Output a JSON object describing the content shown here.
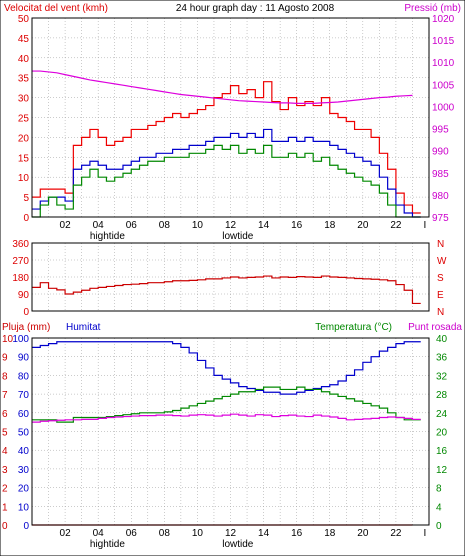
{
  "chart_data": [
    {
      "type": "line",
      "panel": "wind-pressure",
      "title": "24 hour graph day : 11 Agosto 2008",
      "ylabel_left": "Velocitat del vent (kmh)",
      "ylabel_right": "Pressió (mb)",
      "ylim_left": [
        0,
        50
      ],
      "ylim_right": [
        975,
        1020
      ],
      "yticks_left": [
        0,
        5,
        10,
        15,
        20,
        25,
        30,
        35,
        40,
        45,
        50
      ],
      "yticks_right": [
        975,
        980,
        985,
        990,
        995,
        1000,
        1005,
        1010,
        1015,
        1020
      ],
      "xlim": [
        0,
        24
      ],
      "xticks": [
        "02",
        "04",
        "06",
        "08",
        "10",
        "12",
        "14",
        "16",
        "18",
        "20",
        "22"
      ],
      "x_end_tick": "I",
      "tide_labels": [
        {
          "x": 3.5,
          "text": "hightide"
        },
        {
          "x": 11.5,
          "text": "lowtide"
        }
      ],
      "grid": true,
      "x": [
        0,
        0.5,
        1,
        1.5,
        2,
        2.5,
        3,
        3.5,
        4,
        4.5,
        5,
        5.5,
        6,
        6.5,
        7,
        7.5,
        8,
        8.5,
        9,
        9.5,
        10,
        10.5,
        11,
        11.5,
        12,
        12.5,
        13,
        13.5,
        14,
        14.5,
        15,
        15.5,
        16,
        16.5,
        17,
        17.5,
        18,
        18.5,
        19,
        19.5,
        20,
        20.5,
        21,
        21.5,
        22,
        22.5,
        23
      ],
      "series": [
        {
          "name": "Gust",
          "axis": "left",
          "color": "#ee0000",
          "values": [
            5,
            7,
            7,
            7,
            6,
            18,
            20,
            22,
            20,
            18,
            19,
            20,
            22,
            22,
            23,
            24,
            25,
            26,
            25,
            26,
            27,
            28,
            30,
            31,
            33,
            31,
            32,
            30,
            34,
            29,
            27,
            30,
            28,
            29,
            28,
            30,
            26,
            25,
            24,
            22,
            22,
            20,
            16,
            12,
            6,
            3,
            1
          ]
        },
        {
          "name": "Average",
          "axis": "left",
          "color": "#0000cc",
          "values": [
            2,
            4,
            5,
            5,
            4,
            12,
            13,
            14,
            13,
            12,
            12,
            13,
            14,
            15,
            15,
            16,
            16,
            17,
            17,
            18,
            18,
            19,
            20,
            20,
            21,
            20,
            21,
            20,
            22,
            19,
            19,
            20,
            19,
            20,
            19,
            19,
            18,
            17,
            16,
            15,
            14,
            13,
            10,
            7,
            3,
            1,
            0
          ]
        },
        {
          "name": "Speed",
          "axis": "left",
          "color": "#008800",
          "values": [
            0,
            3,
            5,
            3,
            2,
            8,
            10,
            12,
            10,
            9,
            10,
            11,
            12,
            13,
            14,
            14,
            15,
            15,
            15,
            16,
            16,
            17,
            18,
            17,
            18,
            16,
            17,
            16,
            18,
            15,
            15,
            16,
            15,
            16,
            14,
            15,
            13,
            12,
            11,
            10,
            9,
            8,
            6,
            3,
            0,
            0,
            0
          ]
        },
        {
          "name": "Pressure",
          "axis": "right",
          "color": "#dd00dd",
          "values": [
            1008,
            1008,
            1007.8,
            1007.6,
            1007.2,
            1006.8,
            1006.4,
            1006,
            1005.7,
            1005.4,
            1005.1,
            1004.8,
            1004.5,
            1004.2,
            1003.9,
            1003.6,
            1003.3,
            1003,
            1002.7,
            1002.5,
            1002.3,
            1002.1,
            1001.9,
            1001.7,
            1001.5,
            1001.3,
            1001.2,
            1001.1,
            1001,
            1000.9,
            1000.8,
            1000.8,
            1000.7,
            1000.7,
            1000.7,
            1000.8,
            1000.9,
            1001,
            1001.2,
            1001.4,
            1001.6,
            1001.8,
            1002,
            1002.1,
            1002.3,
            1002.4,
            1002.5
          ]
        }
      ]
    },
    {
      "type": "line",
      "panel": "wind-direction",
      "ylim": [
        0,
        360
      ],
      "yticks": [
        0,
        90,
        180,
        270,
        360
      ],
      "yticks_right": [
        "N",
        "W",
        "S",
        "E",
        "N"
      ],
      "xlim": [
        0,
        24
      ],
      "grid": true,
      "x": [
        0,
        0.5,
        1,
        1.5,
        2,
        2.5,
        3,
        3.5,
        4,
        4.5,
        5,
        5.5,
        6,
        6.5,
        7,
        7.5,
        8,
        8.5,
        9,
        9.5,
        10,
        10.5,
        11,
        11.5,
        12,
        12.5,
        13,
        13.5,
        14,
        14.5,
        15,
        15.5,
        16,
        16.5,
        17,
        17.5,
        18,
        18.5,
        19,
        19.5,
        20,
        20.5,
        21,
        21.5,
        22,
        22.5,
        23
      ],
      "series": [
        {
          "name": "Direction",
          "color": "#cc0000",
          "values": [
            125,
            150,
            120,
            112,
            90,
            100,
            110,
            120,
            125,
            130,
            135,
            140,
            142,
            145,
            150,
            150,
            155,
            160,
            160,
            162,
            165,
            170,
            170,
            175,
            180,
            175,
            178,
            180,
            185,
            175,
            180,
            178,
            182,
            180,
            178,
            185,
            180,
            178,
            175,
            172,
            170,
            168,
            165,
            160,
            140,
            110,
            40
          ]
        }
      ]
    },
    {
      "type": "line",
      "panel": "rain-humidity-temp",
      "ylabel_left": "Pluja (mm)",
      "ylabel_left2": "Humitat",
      "ylabel_right": "Temperatura (°C)",
      "ylabel_right2": "Punt rosada",
      "ylim_left": [
        0,
        100
      ],
      "ylim_right": [
        0,
        40
      ],
      "yticks_left_rain": [
        0,
        1,
        2,
        3,
        4,
        5,
        6,
        7,
        8,
        9,
        10
      ],
      "yticks_left_hum": [
        0,
        10,
        20,
        30,
        40,
        50,
        60,
        70,
        80,
        90,
        100
      ],
      "yticks_right": [
        0,
        4,
        8,
        12,
        16,
        20,
        24,
        28,
        32,
        36,
        40
      ],
      "xlim": [
        0,
        24
      ],
      "xticks": [
        "02",
        "04",
        "06",
        "08",
        "10",
        "12",
        "14",
        "16",
        "18",
        "20",
        "22"
      ],
      "x_end_tick": "I",
      "tide_labels": [
        {
          "x": 3.5,
          "text": "hightide"
        },
        {
          "x": 11.5,
          "text": "lowtide"
        }
      ],
      "grid": true,
      "x": [
        0,
        0.5,
        1,
        1.5,
        2,
        2.5,
        3,
        3.5,
        4,
        4.5,
        5,
        5.5,
        6,
        6.5,
        7,
        7.5,
        8,
        8.5,
        9,
        9.5,
        10,
        10.5,
        11,
        11.5,
        12,
        12.5,
        13,
        13.5,
        14,
        14.5,
        15,
        15.5,
        16,
        16.5,
        17,
        17.5,
        18,
        18.5,
        19,
        19.5,
        20,
        20.5,
        21,
        21.5,
        22,
        22.5,
        23
      ],
      "series": [
        {
          "name": "Humitat",
          "axis": "left",
          "color": "#0000cc",
          "values": [
            95,
            96,
            97,
            98,
            98,
            98,
            98,
            98,
            98,
            98,
            98,
            98,
            98,
            98,
            98,
            98,
            98,
            97,
            95,
            92,
            88,
            84,
            80,
            78,
            76,
            74,
            73,
            72,
            71,
            71,
            70,
            70,
            71,
            72,
            73,
            74,
            75,
            77,
            80,
            83,
            87,
            90,
            93,
            95,
            97,
            98,
            98
          ]
        },
        {
          "name": "Temperatura",
          "axis": "right",
          "color": "#008800",
          "values": [
            22.5,
            22.5,
            22.5,
            22,
            22,
            23,
            23,
            23,
            23,
            23.2,
            23.4,
            23.6,
            23.8,
            24,
            24,
            24,
            24.2,
            24.5,
            25,
            25.5,
            26,
            26.5,
            27,
            27.5,
            28,
            28.5,
            28.5,
            29,
            29.5,
            29.5,
            29,
            29,
            29.5,
            29,
            29,
            28.5,
            28,
            27.5,
            27,
            26.5,
            26,
            25.5,
            25,
            24,
            23,
            22.5,
            22.5
          ]
        },
        {
          "name": "Punt rosada",
          "axis": "right",
          "color": "#dd00dd",
          "values": [
            22,
            22.2,
            22.3,
            22.4,
            22.5,
            22.5,
            22.6,
            22.6,
            22.8,
            23,
            23.1,
            23.2,
            23.3,
            23.4,
            23.4,
            23.5,
            23.5,
            23.4,
            23.3,
            23.5,
            23.6,
            23.5,
            23.3,
            23.5,
            23.7,
            23.5,
            23.3,
            23.6,
            23.5,
            23.2,
            23.4,
            23.5,
            23.3,
            23.2,
            23.5,
            23.3,
            23.1,
            22.8,
            22.5,
            22.6,
            22.7,
            22.8,
            23,
            23.1,
            23,
            22.8,
            22.6
          ]
        },
        {
          "name": "Pluja",
          "axis": "left_rain",
          "color": "#ee0000",
          "values": [
            0,
            0,
            0,
            0,
            0,
            0,
            0,
            0,
            0,
            0,
            0,
            0,
            0,
            0,
            0,
            0,
            0,
            0,
            0,
            0,
            0,
            0,
            0,
            0,
            0,
            0,
            0,
            0,
            0,
            0,
            0,
            0,
            0,
            0,
            0,
            0,
            0,
            0,
            0,
            0,
            0,
            0,
            0,
            0,
            0,
            0,
            0
          ]
        }
      ]
    }
  ],
  "colors": {
    "wind_label": "#dd0000",
    "pressure_label": "#cc00cc",
    "rain_label": "#cc0000",
    "humidity_label": "#0000cc",
    "temperature_label": "#008800",
    "dew_label": "#cc00cc"
  }
}
